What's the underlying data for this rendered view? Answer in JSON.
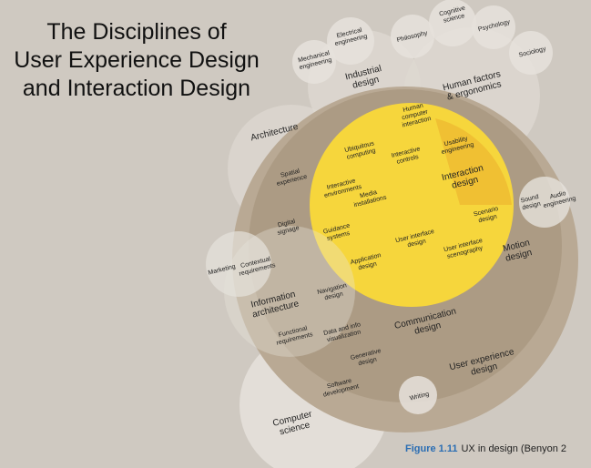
{
  "title": {
    "line1": "The Disciplines of",
    "line2": "User Experience Design",
    "line3": "and Interaction Design"
  },
  "caption": {
    "figure": "Figure 1.11",
    "text": "UX in design  (Benyon 2"
  },
  "colors": {
    "background": "#cfc9c1",
    "ux_outer": "#b9a994",
    "ux_ring": "#a38f76",
    "interaction": "#f6d63c",
    "interaction_dark": "#eeb830",
    "bubble": "#e8e4de"
  },
  "labels": {
    "mechanical": [
      "Mechanical",
      "engineering"
    ],
    "electrical": [
      "Electrical",
      "engineering"
    ],
    "philosophy": [
      "Philosophy"
    ],
    "cognitive": [
      "Cognitive",
      "science"
    ],
    "psychology": [
      "Psychology"
    ],
    "sociology": [
      "Sociology"
    ],
    "industrial": [
      "Industrial",
      "design"
    ],
    "human_factors": [
      "Human factors",
      "& ergonomics"
    ],
    "architecture": [
      "Architecture"
    ],
    "hci": [
      "Human",
      "computer",
      "interaction"
    ],
    "ubiquitous": [
      "Ubiquitous",
      "computing"
    ],
    "interactive_controls": [
      "Interactive",
      "controls"
    ],
    "usability": [
      "Usability",
      "engineering"
    ],
    "spatial": [
      "Spatial",
      "experience"
    ],
    "interactive_env": [
      "Interactive",
      "environments"
    ],
    "media": [
      "Media",
      "installations"
    ],
    "interaction_design": [
      "Interaction",
      "design"
    ],
    "scenario": [
      "Scenario",
      "design"
    ],
    "sound": [
      "Sound",
      "design"
    ],
    "audio": [
      "Audio",
      "engineering"
    ],
    "digital_signage": [
      "Digital",
      "signage"
    ],
    "guidance": [
      "Guidance",
      "systems"
    ],
    "ui_design": [
      "User interface",
      "design"
    ],
    "marketing": [
      "Marketing"
    ],
    "contextual": [
      "Contextual",
      "requirements"
    ],
    "application": [
      "Application",
      "design"
    ],
    "ui_scenography": [
      "User interface",
      "scenography"
    ],
    "motion": [
      "Motion",
      "design"
    ],
    "info_arch": [
      "Information",
      "architecture"
    ],
    "navigation": [
      "Navigation",
      "design"
    ],
    "functional": [
      "Functional",
      "requirements"
    ],
    "data_vis": [
      "Data and info",
      "visualization"
    ],
    "communication": [
      "Communication",
      "design"
    ],
    "generative": [
      "Generative",
      "design"
    ],
    "software": [
      "Software",
      "development"
    ],
    "ux_design": [
      "User experience",
      "design"
    ],
    "writing": [
      "Writing"
    ],
    "computer_science": [
      "Computer",
      "science"
    ]
  }
}
